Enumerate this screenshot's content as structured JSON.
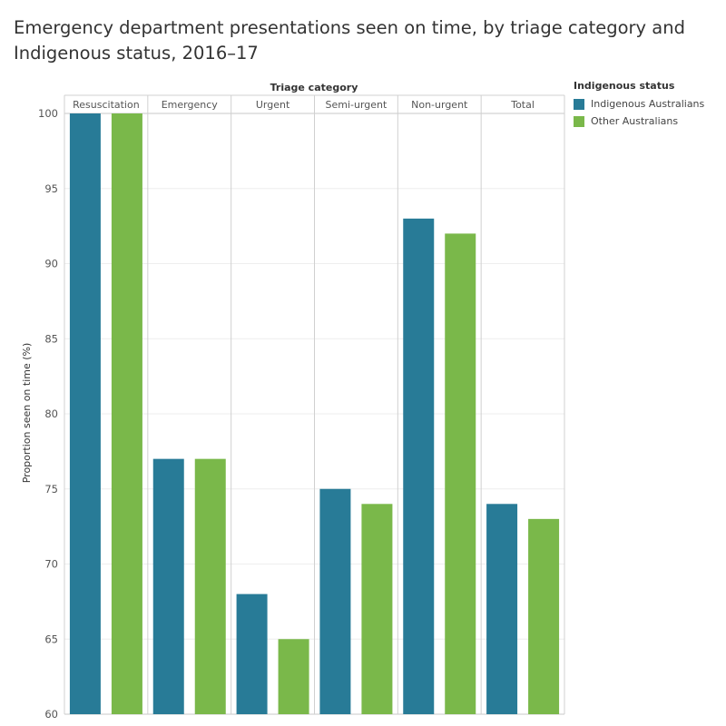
{
  "title": {
    "line1": "Emergency department presentations seen on time, by triage category and",
    "line2": "Indigenous status, 2016–17"
  },
  "chart_data": {
    "type": "bar",
    "xlabel": "Triage category",
    "ylabel": "Proportion seen on time (%)",
    "ylim": [
      60,
      100
    ],
    "yticks": [
      60,
      65,
      70,
      75,
      80,
      85,
      90,
      95,
      100
    ],
    "categories": [
      "Resuscitation",
      "Emergency",
      "Urgent",
      "Semi-urgent",
      "Non-urgent",
      "Total"
    ],
    "series": [
      {
        "name": "Indigenous Australians",
        "color": "#287b97",
        "values": [
          100,
          77,
          68,
          75,
          93,
          74
        ]
      },
      {
        "name": "Other Australians",
        "color": "#7ab84a",
        "values": [
          100,
          77,
          65,
          74,
          92,
          73
        ]
      }
    ],
    "grid": true,
    "legend_title": "Indigenous status",
    "legend_position": "top-right"
  }
}
